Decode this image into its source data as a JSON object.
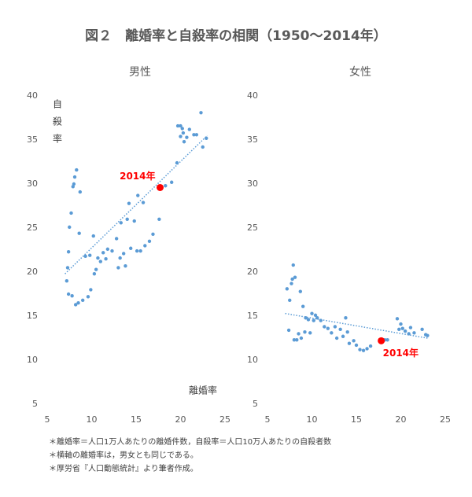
{
  "title": "図２　離婚率と自殺率の相関（1950〜2014年）",
  "notes": [
    "＊離婚率＝人口1万人あたりの離婚件数，自殺率＝人口10万人あたりの自殺者数",
    "＊横軸の離婚率は，男女とも同じである。",
    "＊厚労省『人口動態統計』より筆者作成。"
  ],
  "chart_data": [
    {
      "type": "scatter",
      "title": "男性",
      "xlabel": "離婚率",
      "ylabel": "自殺率",
      "color": "#5b9bd5",
      "xlim": [
        5,
        25
      ],
      "xticks": [
        5,
        10,
        15,
        20,
        25
      ],
      "ylim": [
        5,
        40
      ],
      "yticks": [
        5,
        10,
        15,
        20,
        25,
        30,
        35,
        40
      ],
      "x": [
        7.2,
        7.3,
        7.4,
        7.4,
        7.5,
        7.7,
        7.9,
        8.0,
        8.1,
        8.3,
        7.8,
        8.2,
        8.5,
        8.6,
        8.7,
        9.0,
        9.3,
        9.6,
        9.8,
        9.9,
        10.2,
        10.3,
        10.5,
        10.7,
        11.0,
        11.3,
        11.6,
        11.8,
        12.3,
        12.8,
        13.0,
        13.2,
        13.3,
        13.6,
        13.8,
        14.0,
        14.2,
        14.4,
        14.8,
        15.1,
        15.2,
        15.5,
        15.8,
        16.0,
        16.5,
        16.9,
        17.6,
        18.3,
        19.0,
        19.6,
        19.7,
        20.0,
        20.0,
        20.2,
        20.3,
        20.4,
        20.7,
        21.0,
        21.5,
        21.8,
        22.3,
        22.5,
        22.9
      ],
      "values": [
        19.0,
        20.5,
        22.3,
        17.5,
        25.1,
        26.7,
        29.7,
        30.0,
        30.8,
        31.6,
        17.3,
        16.3,
        16.5,
        24.4,
        29.1,
        16.8,
        21.8,
        17.2,
        21.9,
        18.0,
        24.1,
        19.8,
        20.3,
        21.6,
        21.2,
        22.2,
        21.5,
        22.6,
        22.4,
        23.8,
        20.5,
        21.6,
        25.6,
        22.1,
        20.7,
        26.0,
        27.8,
        22.7,
        25.8,
        22.4,
        28.7,
        22.4,
        27.9,
        23.0,
        23.5,
        24.3,
        26.0,
        29.8,
        30.2,
        32.4,
        36.6,
        36.6,
        35.4,
        36.3,
        35.8,
        34.8,
        35.3,
        36.2,
        35.6,
        35.6,
        38.1,
        34.2,
        35.2
      ],
      "trendline": {
        "x": [
          7,
          23
        ],
        "y": [
          19.8,
          35.5
        ],
        "color": "#5b9bd5"
      },
      "highlight": {
        "x": 17.7,
        "y": 29.6,
        "label": "2014年",
        "color": "#ff0000"
      }
    },
    {
      "type": "scatter",
      "title": "女性",
      "color": "#5b9bd5",
      "xlim": [
        5,
        25
      ],
      "xticks": [
        5,
        10,
        15,
        20,
        25
      ],
      "ylim": [
        5,
        40
      ],
      "yticks": [
        5,
        10,
        15,
        20,
        25,
        30,
        35,
        40
      ],
      "x": [
        7.2,
        7.4,
        7.5,
        7.7,
        7.8,
        7.9,
        8.1,
        8.0,
        8.3,
        8.5,
        8.7,
        8.8,
        9.0,
        9.2,
        9.3,
        9.6,
        9.8,
        10.0,
        10.2,
        10.4,
        10.6,
        11.0,
        11.4,
        11.8,
        12.2,
        12.6,
        12.8,
        13.2,
        13.5,
        13.8,
        14.0,
        14.2,
        14.7,
        15.0,
        15.4,
        15.8,
        16.2,
        16.6,
        18.2,
        18.5,
        19.6,
        19.8,
        20.0,
        20.2,
        20.5,
        20.9,
        21.1,
        21.5,
        22.4,
        22.8,
        23.0
      ],
      "values": [
        18.1,
        13.4,
        16.8,
        18.7,
        19.2,
        20.8,
        19.4,
        12.3,
        12.3,
        13.0,
        17.8,
        12.5,
        16.1,
        13.2,
        14.8,
        14.6,
        13.1,
        15.3,
        14.5,
        15.1,
        14.8,
        14.5,
        13.8,
        13.6,
        13.1,
        13.8,
        12.5,
        13.5,
        12.7,
        14.8,
        13.2,
        11.9,
        12.2,
        11.7,
        11.2,
        11.1,
        11.3,
        11.6,
        12.3,
        12.3,
        14.7,
        13.5,
        14.1,
        13.6,
        13.3,
        13.0,
        13.7,
        13.1,
        13.5,
        12.9,
        12.8
      ],
      "trendline": {
        "x": [
          7,
          23
        ],
        "y": [
          15.3,
          12.5
        ],
        "color": "#5b9bd5"
      },
      "highlight": {
        "x": 17.8,
        "y": 12.2,
        "label": "2014年",
        "color": "#ff0000"
      }
    }
  ]
}
